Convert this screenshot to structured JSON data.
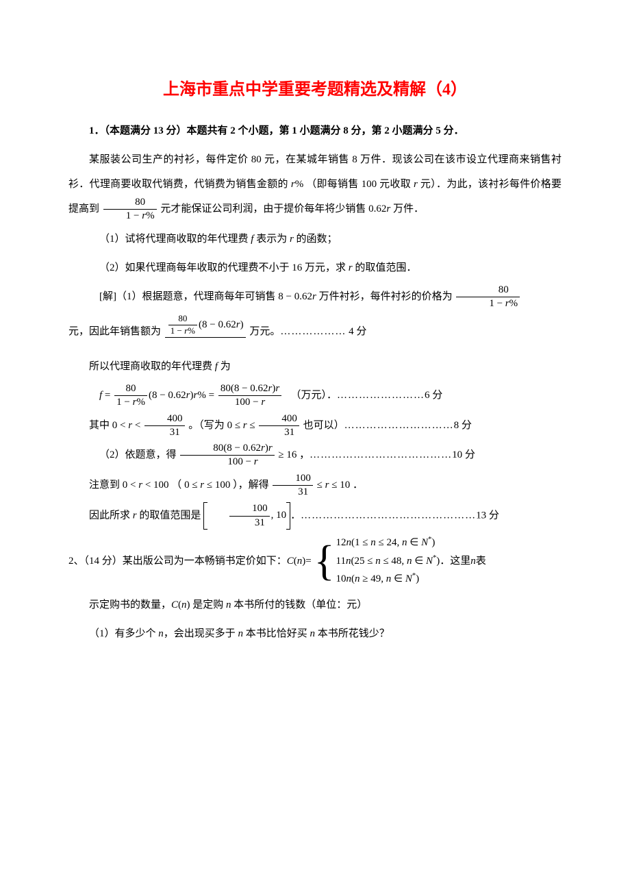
{
  "title": "上海市重点中学重要考题精选及精解（4）",
  "q1": {
    "header": "1．（本题满分 13 分）本题共有 2 个小题，第 1 小题满分 8 分，第 2 小题满分 5 分．",
    "p1_a": "某服装公司生产的衬衫，每件定价 80 元，在某城年销售 8 万件．现该公司在该市设立代理商来销售衬衫．代理商要收取代销费，代销费为销售金额的 ",
    "p1_r1": "r",
    "p1_pct1": "% （即每销售 100 元收取 ",
    "p1_r2": "r",
    "p1_b": " 元）．为此，该衬衫每件价格要提高到 ",
    "frac1_num": "80",
    "frac1_den_a": "1 − ",
    "frac1_den_r": "r",
    "frac1_den_b": "%",
    "p1_c": " 元才能保证公司利润，由于提价每年将少销售 ",
    "p1_d": "0.62",
    "p1_r3": "r",
    "p1_e": " 万件．",
    "sub1_a": "（1）试将代理商收取的年代理费 ",
    "sub1_f": "f",
    "sub1_b": " 表示为 ",
    "sub1_r": "r",
    "sub1_c": " 的函数；",
    "sub2_a": "（2）如果代理商每年收取的代理费不小于 16 万元，求 ",
    "sub2_r": "r",
    "sub2_b": " 的取值范围．",
    "sol_label": "[解]（1）根据题意，代理商每年可销售 ",
    "sol_expr1": "8 − 0.62",
    "sol_r1": "r",
    "sol_a": " 万件衬衫，每件衬衫的价格为 ",
    "sol_frac_num": "80",
    "sol_frac_den_a": "1 − ",
    "sol_frac_den_r": "r",
    "sol_frac_den_b": "%",
    "sol_yuan_a": "元，因此年销售额为 ",
    "sol_sales_num_a": "80",
    "sol_sales_num_b": "(8 − 0.62",
    "sol_sales_num_r": "r",
    "sol_sales_num_c": ")",
    "sol_sales_den_a": "1 − ",
    "sol_sales_den_r": "r",
    "sol_sales_den_b": "%",
    "sol_sales_tail": " 万元。",
    "dots4": "………………",
    "pts4": " 4 分",
    "sol_fee_a": "所以代理商收取的年代理费 ",
    "sol_fee_f": "f",
    "sol_fee_b": " 为",
    "feq_lhs": "f",
    "feq_eq": " = ",
    "feq_f1_num": "80",
    "feq_f1_den_a": "1 − ",
    "feq_f1_den_r": "r",
    "feq_f1_den_b": "%",
    "feq_mid_a": "(8 − 0.62",
    "feq_mid_r": "r",
    "feq_mid_b": ")",
    "feq_mid_r2": "r",
    "feq_mid_c": "% = ",
    "feq_f2_num_a": "80(8 − 0.62",
    "feq_f2_num_r": "r",
    "feq_f2_num_b": ")",
    "feq_f2_num_r2": "r",
    "feq_f2_den_a": "100 − ",
    "feq_f2_den_r": "r",
    "feq_unit": "（万元）．",
    "dots6": "……………………",
    "pts6": "6 分",
    "where_a": "其中 ",
    "where_ineq1_a": "0 < ",
    "where_ineq1_r": "r",
    "where_ineq1_b": " < ",
    "where_ineq1_num": "400",
    "where_ineq1_den": "31",
    "where_mid": " 。（写为 ",
    "where_ineq2_a": "0 ≤ ",
    "where_ineq2_r": "r",
    "where_ineq2_b": " ≤ ",
    "where_ineq2_num": "400",
    "where_ineq2_den": "31",
    "where_tail": " 也可以）",
    "dots8": "…………………………",
    "pts8": "8 分",
    "p2_a": "（2）依题意，得 ",
    "p2_frac_num_a": "80(8 − 0.62",
    "p2_frac_num_r": "r",
    "p2_frac_num_b": ")",
    "p2_frac_num_r2": "r",
    "p2_frac_den_a": "100 − ",
    "p2_frac_den_r": "r",
    "p2_geq": " ≥ 16",
    "p2_comma": " ，",
    "dots10": "…………………………………",
    "pts10": "10 分",
    "note_a": "注意到 ",
    "note_ineq1": "0 < ",
    "note_r1": "r",
    "note_ineq1b": " < 100",
    "note_paren_a": "（ ",
    "note_ineq2": "0 ≤ ",
    "note_r2": "r",
    "note_ineq2b": " ≤ 100",
    "note_paren_b": " ），解得 ",
    "note_frac_num": "100",
    "note_frac_den": "31",
    "note_leq": " ≤ ",
    "note_r3": "r",
    "note_leq10": " ≤ 10",
    "note_period": " ．",
    "final_a": "因此所求 ",
    "final_r": "r",
    "final_b": " 的取值范围是 ",
    "final_int_num": "100",
    "final_int_den": "31",
    "final_int_sep": ", 10",
    "final_period": "．",
    "dots13": "…………………………………………",
    "pts13": "13 分"
  },
  "q2": {
    "header_a": "2、（14 分）某出版公司为一本畅销书定价如下：",
    "lhs_C": "C",
    "lhs_n": "n",
    "eq": " = ",
    "case1_a": "12",
    "case1_n": "n",
    "case1_cond": "(1 ≤ ",
    "case1_n2": "n",
    "case1_cond_b": " ≤ 24, ",
    "case1_n3": "n",
    "case1_in": " ∈ ",
    "case1_N": "N",
    "case1_star": "*",
    "case1_close": ")",
    "case2_a": "11",
    "case2_n": "n",
    "case2_cond": "(25 ≤ ",
    "case2_n2": "n",
    "case2_cond_b": " ≤ 48, ",
    "case2_n3": "n",
    "case2_in": " ∈ ",
    "case2_N": "N",
    "case2_star": "*",
    "case2_close": ")",
    "case3_a": "10",
    "case3_n": "n",
    "case3_cond": "(",
    "case3_n2": "n",
    "case3_cond_b": " ≥ 49, ",
    "case3_n3": "n",
    "case3_in": " ∈ ",
    "case3_N": "N",
    "case3_star": "*",
    "case3_close": ")",
    "tail_a": "．这里 ",
    "tail_n": "n",
    "tail_b": " 表",
    "line2_a": "示定购书的数量，",
    "line2_C": "C",
    "line2_n": "n",
    "line2_b": " 是定购 ",
    "line2_n2": "n",
    "line2_c": " 本书所付的钱数（单位：元）",
    "sub1_a": "（1）有多少个 ",
    "sub1_n": "n",
    "sub1_b": "，会出现买多于 ",
    "sub1_n2": "n",
    "sub1_c": " 本书比恰好买 ",
    "sub1_n3": "n",
    "sub1_d": " 本书所花钱少？"
  }
}
